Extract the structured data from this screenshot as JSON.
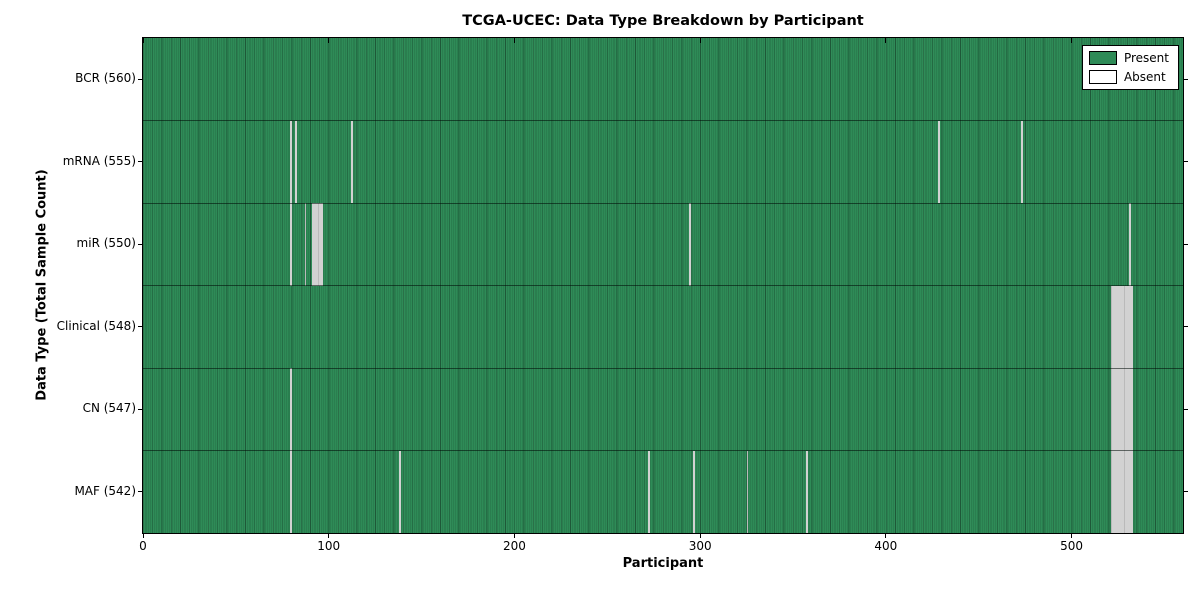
{
  "title": "TCGA-UCEC: Data Type Breakdown by Participant",
  "chart_data": {
    "type": "heatmap",
    "title": "TCGA-UCEC: Data Type Breakdown by Participant",
    "xlabel": "Participant",
    "ylabel": "Data Type (Total Sample Count)",
    "xlim": [
      0,
      560
    ],
    "x_ticks": [
      0,
      100,
      200,
      300,
      400,
      500
    ],
    "n_participants": 560,
    "grid": false,
    "legend_position": "upper right",
    "legend": [
      {
        "label": "Present",
        "color": "#2e8b57"
      },
      {
        "label": "Absent",
        "color": "#ffffff"
      }
    ],
    "categories": [
      "BCR (560)",
      "mRNA (555)",
      "miR (550)",
      "Clinical (548)",
      "CN (547)",
      "MAF (542)"
    ],
    "rows": [
      {
        "label": "BCR (560)",
        "data_type": "BCR",
        "total": 560,
        "absent_participants": []
      },
      {
        "label": "mRNA (555)",
        "data_type": "mRNA",
        "total": 555,
        "absent_participants": [
          79,
          82,
          112,
          428,
          473
        ]
      },
      {
        "label": "miR (550)",
        "data_type": "miR",
        "total": 550,
        "absent_participants": [
          79,
          87,
          91,
          92,
          93,
          94,
          95,
          96,
          294,
          531
        ]
      },
      {
        "label": "Clinical (548)",
        "data_type": "Clinical",
        "total": 548,
        "absent_participants": [
          521,
          522,
          523,
          524,
          525,
          526,
          527,
          528,
          529,
          530,
          531,
          532
        ]
      },
      {
        "label": "CN (547)",
        "data_type": "CN",
        "total": 547,
        "absent_participants": [
          79,
          521,
          522,
          523,
          524,
          525,
          526,
          527,
          528,
          529,
          530,
          531,
          532
        ]
      },
      {
        "label": "MAF (542)",
        "data_type": "MAF",
        "total": 542,
        "absent_participants": [
          79,
          138,
          272,
          296,
          325,
          357,
          521,
          522,
          523,
          524,
          525,
          526,
          527,
          528,
          529,
          530,
          531,
          532
        ]
      }
    ]
  },
  "colors": {
    "present": "#2e8b57",
    "absent": "#ececec",
    "bar_edge": "#000000",
    "axes_border": "#000000",
    "background": "#ffffff"
  }
}
